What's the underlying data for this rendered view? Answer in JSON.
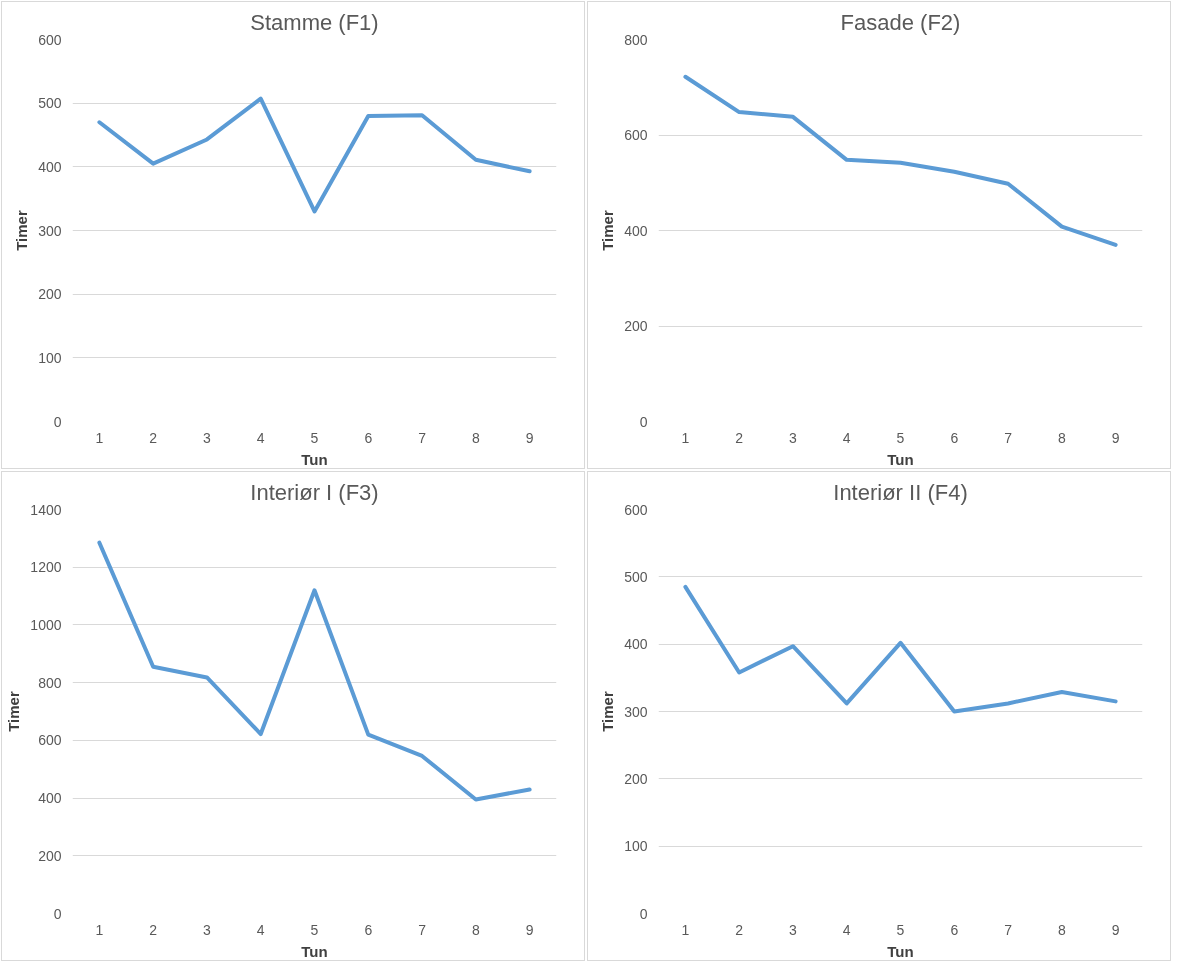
{
  "chart_data": [
    {
      "type": "line",
      "title": "Stamme (F1)",
      "xlabel": "Tun",
      "ylabel": "Timer",
      "categories": [
        "1",
        "2",
        "3",
        "4",
        "5",
        "6",
        "7",
        "8",
        "9"
      ],
      "series": [
        {
          "color": "#5b9bd5",
          "values": [
            470,
            405,
            443,
            507,
            330,
            480,
            481,
            411,
            393
          ]
        }
      ],
      "ylim": [
        0,
        600
      ],
      "yticks": [
        0,
        100,
        200,
        300,
        400,
        500,
        600
      ],
      "grid": "y",
      "marker": "none",
      "line_style": "solid"
    },
    {
      "type": "line",
      "title": "Fasade (F2)",
      "xlabel": "Tun",
      "ylabel": "Timer",
      "categories": [
        "1",
        "2",
        "3",
        "4",
        "5",
        "6",
        "7",
        "8",
        "9"
      ],
      "series": [
        {
          "color": "#5b9bd5",
          "values": [
            722,
            648,
            638,
            548,
            542,
            523,
            498,
            408,
            370
          ]
        }
      ],
      "ylim": [
        0,
        800
      ],
      "yticks": [
        0,
        200,
        400,
        600,
        800
      ],
      "grid": "y",
      "marker": "none",
      "line_style": "solid"
    },
    {
      "type": "line",
      "title": "Interiør I (F3)",
      "xlabel": "Tun",
      "ylabel": "Timer",
      "categories": [
        "1",
        "2",
        "3",
        "4",
        "5",
        "6",
        "7",
        "8",
        "9"
      ],
      "series": [
        {
          "color": "#5b9bd5",
          "values": [
            1285,
            855,
            818,
            622,
            1120,
            620,
            546,
            395,
            430
          ]
        }
      ],
      "ylim": [
        0,
        1400
      ],
      "yticks": [
        0,
        200,
        400,
        600,
        800,
        1000,
        1200,
        1400
      ],
      "grid": "y",
      "marker": "none",
      "line_style": "solid"
    },
    {
      "type": "line",
      "title": "Interiør II (F4)",
      "xlabel": "Tun",
      "ylabel": "Timer",
      "categories": [
        "1",
        "2",
        "3",
        "4",
        "5",
        "6",
        "7",
        "8",
        "9"
      ],
      "series": [
        {
          "color": "#5b9bd5",
          "values": [
            485,
            358,
            397,
            312,
            402,
            300,
            312,
            329,
            315
          ]
        }
      ],
      "ylim": [
        0,
        600
      ],
      "yticks": [
        0,
        100,
        200,
        300,
        400,
        500,
        600
      ],
      "grid": "y",
      "marker": "none",
      "line_style": "solid"
    }
  ]
}
